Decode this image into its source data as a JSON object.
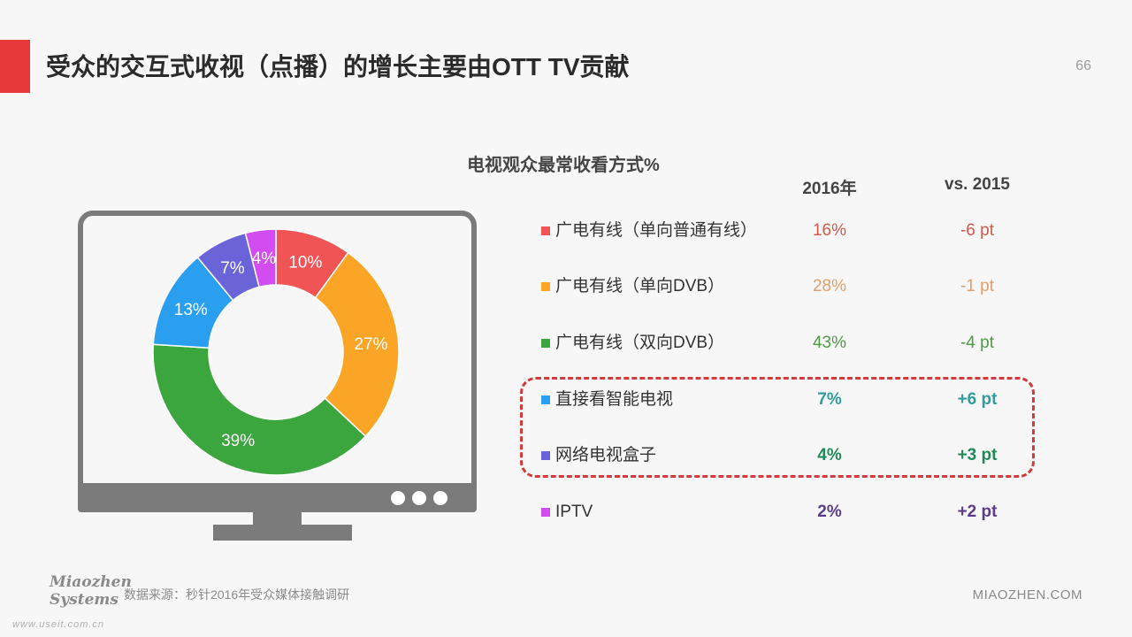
{
  "header": {
    "title": "受众的交互式收视（点播）的增长主要由OTT TV贡献",
    "page_number": "66",
    "accent_color": "#e8393a"
  },
  "chart_data": {
    "type": "pie",
    "title": "电视观众最常收看方式%",
    "columns": [
      "2016年",
      "vs. 2015"
    ],
    "slices": [
      {
        "label": "广电有线（单向普通有线）",
        "value": 10,
        "value_label": "10%",
        "share_2016": "16%",
        "vs_2015": "-6 pt",
        "color": "#f05454",
        "text_color": "#d05a4a",
        "bold": false
      },
      {
        "label": "广电有线（单向DVB）",
        "value": 27,
        "value_label": "27%",
        "share_2016": "28%",
        "vs_2015": "-1 pt",
        "color": "#faa526",
        "text_color": "#e0a06a",
        "bold": false
      },
      {
        "label": "广电有线（双向DVB）",
        "value": 39,
        "value_label": "39%",
        "share_2016": "43%",
        "vs_2015": "-4 pt",
        "color": "#3aa63d",
        "text_color": "#4f9a45",
        "bold": false
      },
      {
        "label": "直接看智能电视",
        "value": 13,
        "value_label": "13%",
        "share_2016": "7%",
        "vs_2015": "+6 pt",
        "color": "#2a9ff0",
        "text_color": "#2f9d9b",
        "bold": true
      },
      {
        "label": "网络电视盒子",
        "value": 7,
        "value_label": "7%",
        "share_2016": "4%",
        "vs_2015": "+3 pt",
        "color": "#6b64d8",
        "text_color": "#1f8a58",
        "bold": true
      },
      {
        "label": "IPTV",
        "value": 4,
        "value_label": "4%",
        "share_2016": "2%",
        "vs_2015": "+2 pt",
        "color": "#d14df0",
        "text_color": "#5a3e8c",
        "bold": true
      }
    ]
  },
  "footer": {
    "source": "数据来源：秒针2016年受众媒体接触调研",
    "logo_line1": "Miaozhen",
    "logo_line2": "Systems",
    "url": "MIAOZHEN.COM",
    "watermark": "www.useit.com.cn"
  }
}
